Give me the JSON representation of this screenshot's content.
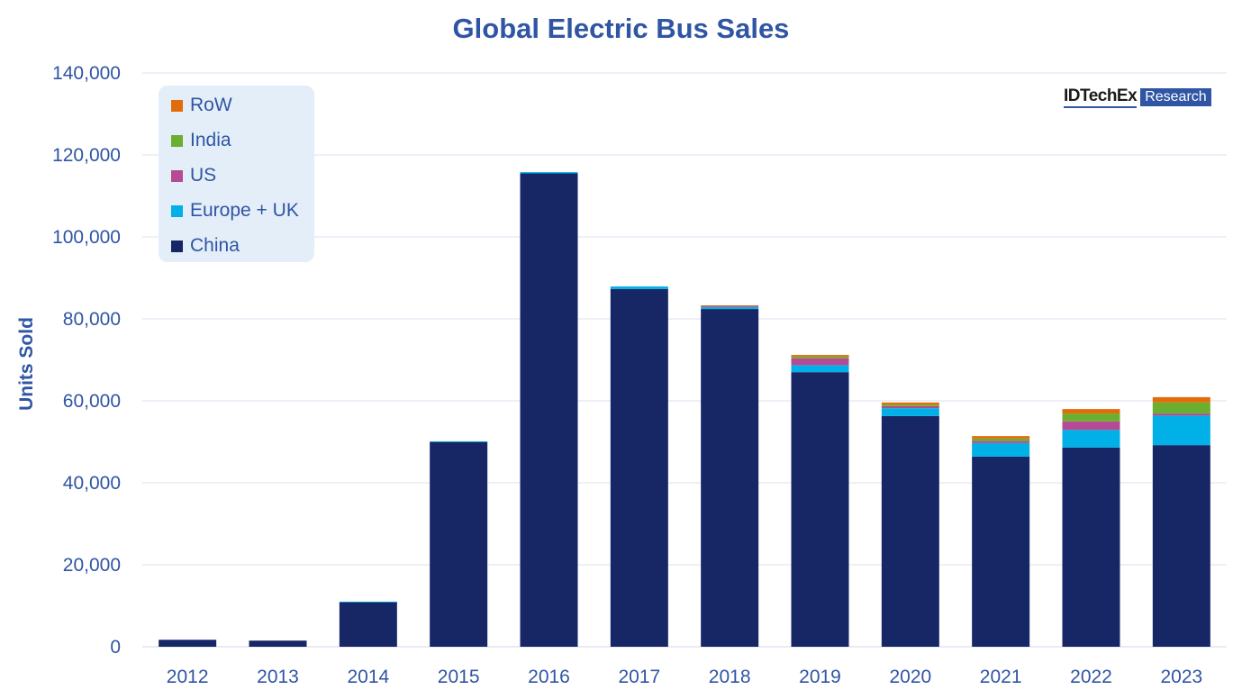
{
  "chart_data": {
    "type": "bar",
    "stacked": true,
    "title": "Global Electric Bus Sales",
    "xlabel": "",
    "ylabel": "Units Sold",
    "ylim": [
      0,
      140000
    ],
    "yticks": [
      0,
      20000,
      40000,
      60000,
      80000,
      100000,
      120000,
      140000
    ],
    "ytick_labels": [
      "0",
      "20,000",
      "40,000",
      "60,000",
      "80,000",
      "100,000",
      "120,000",
      "140,000"
    ],
    "grid": true,
    "legend_position": "top-left",
    "categories": [
      "2012",
      "2013",
      "2014",
      "2015",
      "2016",
      "2017",
      "2018",
      "2019",
      "2020",
      "2021",
      "2022",
      "2023"
    ],
    "series": [
      {
        "name": "China",
        "color": "#172765",
        "values": [
          1700,
          1500,
          10900,
          50000,
          115500,
          87300,
          82400,
          67000,
          56300,
          46400,
          48600,
          49200
        ]
      },
      {
        "name": "Europe + UK",
        "color": "#00B0E6",
        "values": [
          0,
          0,
          100,
          100,
          300,
          600,
          500,
          1700,
          1900,
          3300,
          4300,
          7200
        ]
      },
      {
        "name": "US",
        "color": "#B54B94",
        "values": [
          0,
          0,
          0,
          0,
          0,
          0,
          300,
          1700,
          500,
          500,
          2100,
          500
        ]
      },
      {
        "name": "India",
        "color": "#6AAF2E",
        "values": [
          0,
          0,
          0,
          0,
          0,
          0,
          0,
          400,
          400,
          600,
          1900,
          2700
        ]
      },
      {
        "name": "RoW",
        "color": "#E36C0A",
        "values": [
          0,
          0,
          0,
          0,
          0,
          0,
          100,
          400,
          500,
          600,
          1100,
          1300
        ]
      }
    ]
  },
  "logo": {
    "text": "IDTechEx",
    "tag": "Research"
  }
}
